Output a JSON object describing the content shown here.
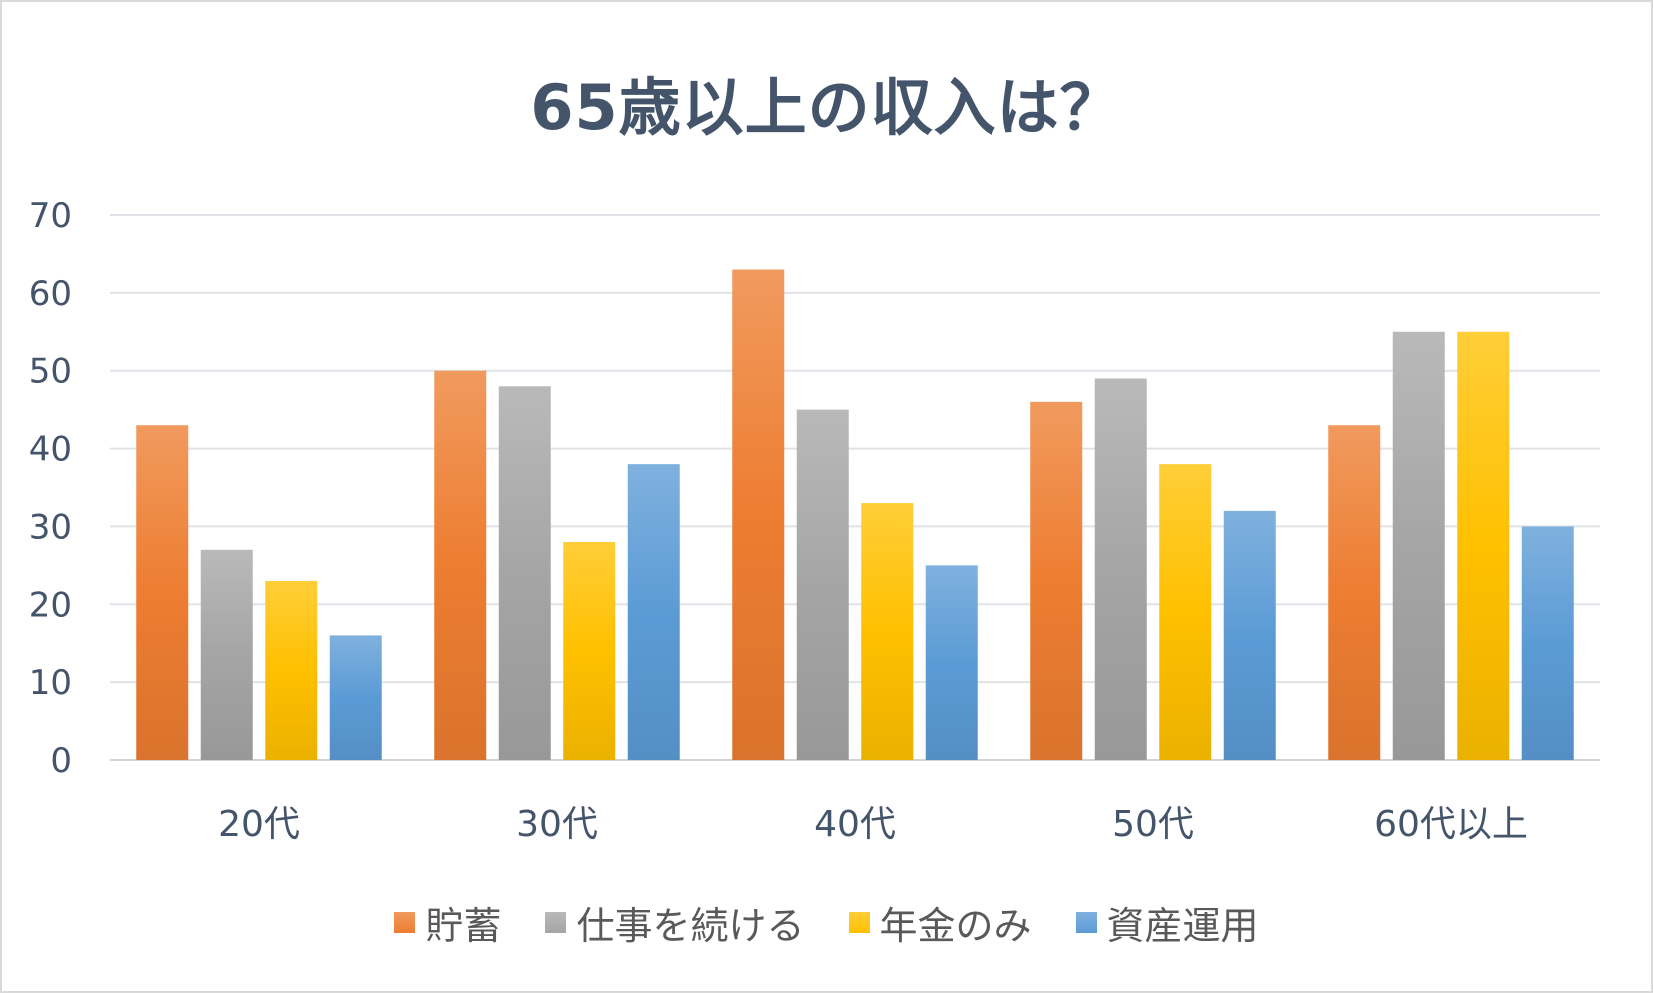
{
  "chart_data": {
    "type": "bar",
    "title": "65歳以上の収入は？",
    "categories": [
      "20代",
      "30代",
      "40代",
      "50代",
      "60代以上"
    ],
    "series": [
      {
        "name": "貯蓄",
        "color": "#ed7d31",
        "values": [
          43,
          50,
          63,
          46,
          43
        ]
      },
      {
        "name": "仕事を続ける",
        "color": "#a5a5a5",
        "values": [
          27,
          48,
          45,
          49,
          55
        ]
      },
      {
        "name": "年金のみ",
        "color": "#ffc000",
        "values": [
          23,
          28,
          33,
          38,
          55
        ]
      },
      {
        "name": "資産運用",
        "color": "#5b9bd5",
        "values": [
          16,
          38,
          25,
          32,
          30
        ]
      }
    ],
    "ylim": [
      0,
      70
    ],
    "yticks": [
      0,
      10,
      20,
      30,
      40,
      50,
      60,
      70
    ],
    "xlabel": "",
    "ylabel": "",
    "grid": true,
    "legend_position": "bottom"
  }
}
